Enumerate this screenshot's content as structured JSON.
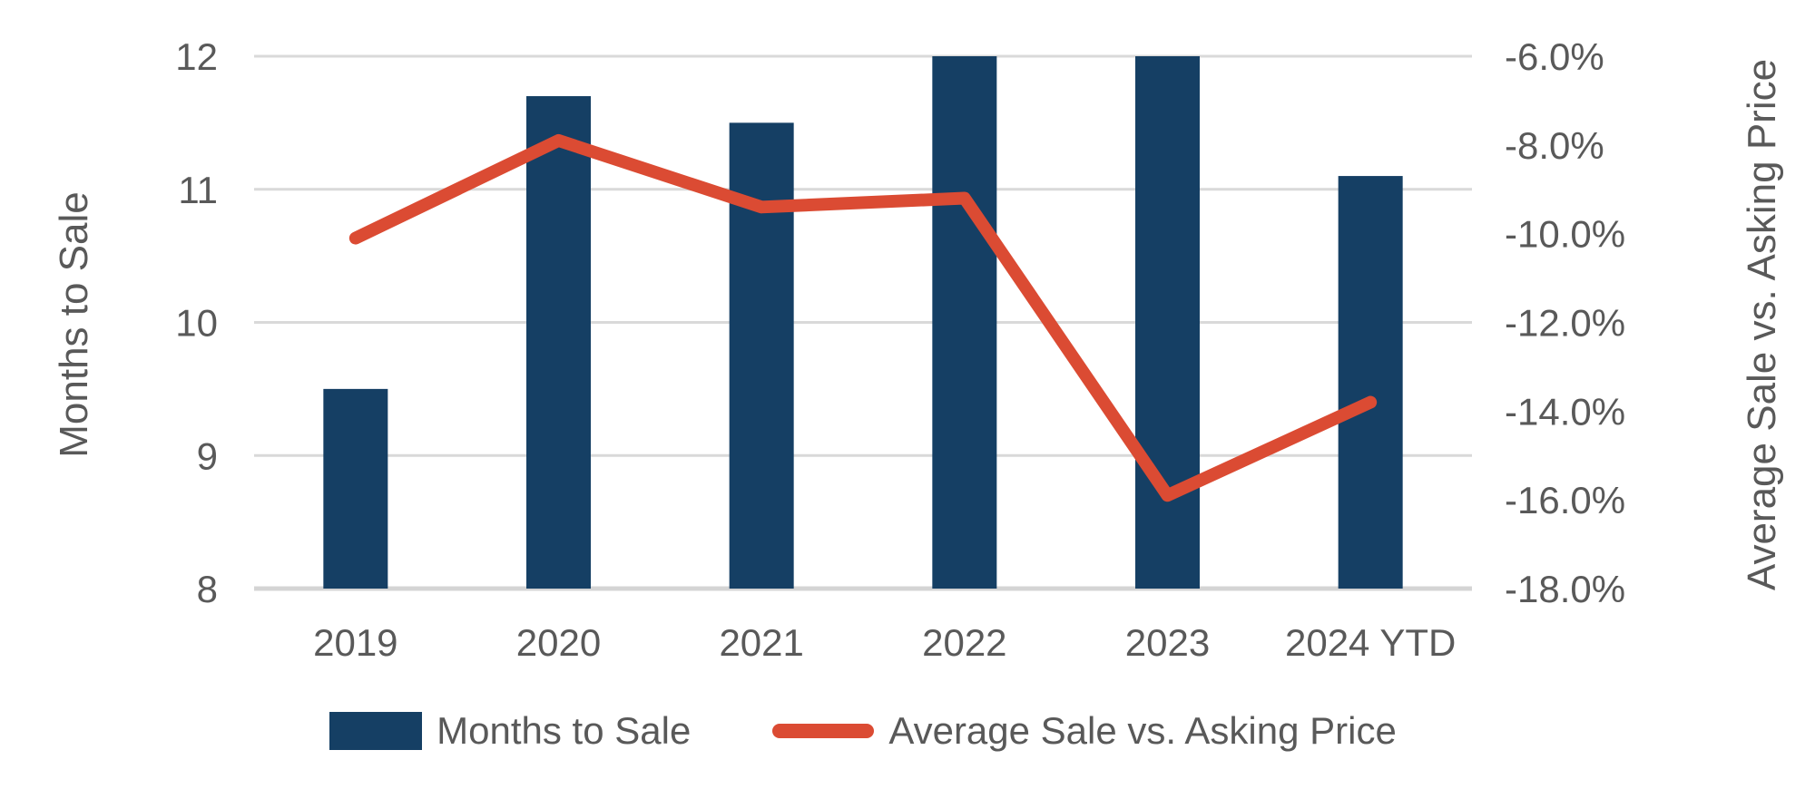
{
  "chart_data": {
    "type": "combo-bar-line",
    "categories": [
      "2019",
      "2020",
      "2021",
      "2022",
      "2023",
      "2024 YTD"
    ],
    "series": [
      {
        "name": "Months to Sale",
        "type": "bar",
        "axis": "left",
        "values": [
          9.5,
          11.7,
          11.5,
          12.0,
          12.0,
          11.1
        ]
      },
      {
        "name": "Average Sale vs. Asking Price",
        "type": "line",
        "axis": "right",
        "values": [
          -10.1,
          -7.9,
          -9.4,
          -9.2,
          -15.9,
          -13.8
        ]
      }
    ],
    "left_axis": {
      "title": "Months to Sale",
      "min": 8,
      "max": 12,
      "step": 1,
      "tick_labels": [
        "12",
        "11",
        "10",
        "9",
        "8"
      ]
    },
    "right_axis": {
      "title": "Average Sale vs. Asking Price",
      "min": -18,
      "max": -6,
      "step": 2,
      "tick_labels": [
        "-6.0%",
        "-8.0%",
        "-10.0%",
        "-12.0%",
        "-14.0%",
        "-16.0%",
        "-18.0%"
      ]
    },
    "grid": true,
    "legend_position": "bottom"
  },
  "legend": {
    "items": [
      {
        "label": "Months to Sale",
        "swatch": "bar"
      },
      {
        "label": "Average Sale vs. Asking Price",
        "swatch": "line"
      }
    ]
  },
  "colors": {
    "bar": "#153F64",
    "line": "#DB4B33",
    "grid": "#D9D9D9",
    "baseline": "#D4D4D4",
    "text": "#595959",
    "background": "#FFFFFF"
  }
}
